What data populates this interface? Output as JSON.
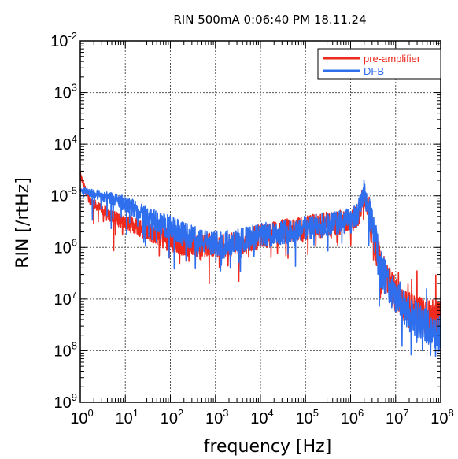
{
  "chart_data": {
    "type": "line",
    "title": "RIN 500mA 0:06:40 PM 18.11.24",
    "xlabel": "frequency [Hz]",
    "ylabel": "RIN [/rtHz]",
    "x_scale": "log",
    "y_scale": "log",
    "xlim": [
      1,
      100000000
    ],
    "ylim": [
      1e-09,
      0.01
    ],
    "x_ticks": [
      {
        "base": "10",
        "exp": "0"
      },
      {
        "base": "10",
        "exp": "1"
      },
      {
        "base": "10",
        "exp": "2"
      },
      {
        "base": "10",
        "exp": "3"
      },
      {
        "base": "10",
        "exp": "4"
      },
      {
        "base": "10",
        "exp": "5"
      },
      {
        "base": "10",
        "exp": "6"
      },
      {
        "base": "10",
        "exp": "7"
      },
      {
        "base": "10",
        "exp": "8"
      }
    ],
    "y_ticks": [
      {
        "base": "10",
        "exp": "-2"
      },
      {
        "base": "10",
        "exp": "3"
      },
      {
        "base": "10",
        "exp": "4"
      },
      {
        "base": "10",
        "exp": "-5"
      },
      {
        "base": "10",
        "exp": "6"
      },
      {
        "base": "10",
        "exp": "7"
      },
      {
        "base": "10",
        "exp": "8"
      },
      {
        "base": "10",
        "exp": "9"
      }
    ],
    "grid": true,
    "legend_position": "top-right",
    "series": [
      {
        "name": "pre-amplifier",
        "color": "#ee2a1e",
        "x": [
          1,
          1.5,
          2,
          3,
          5,
          10,
          20,
          50,
          100,
          200,
          500,
          1000,
          3000,
          10000,
          30000,
          100000,
          300000,
          1000000,
          1500000,
          2000000,
          2500000,
          3500000,
          5000000,
          10000000,
          20000000,
          50000000,
          100000000
        ],
        "y": [
          2.5e-05,
          9e-06,
          7e-06,
          5.5e-06,
          4e-06,
          3e-06,
          2.5e-06,
          1.8e-06,
          1.4e-06,
          1.2e-06,
          1.1e-06,
          1.1e-06,
          1.2e-06,
          1.6e-06,
          2e-06,
          2.4e-06,
          2.8e-06,
          3.2e-06,
          4.5e-06,
          1.1e-05,
          5e-06,
          1.2e-06,
          3.5e-07,
          1.2e-07,
          6e-08,
          4.5e-08,
          4e-08
        ]
      },
      {
        "name": "DFB",
        "color": "#2f6fee",
        "x": [
          1,
          1.5,
          2,
          3,
          5,
          10,
          20,
          50,
          100,
          200,
          500,
          1000,
          3000,
          10000,
          30000,
          100000,
          300000,
          1000000,
          1500000,
          2000000,
          2500000,
          3500000,
          5000000,
          10000000,
          20000000,
          50000000,
          100000000
        ],
        "y": [
          1.3e-05,
          1.2e-05,
          1.1e-05,
          1e-05,
          9e-06,
          7e-06,
          5e-06,
          3.2e-06,
          2.4e-06,
          1.8e-06,
          1.3e-06,
          1.2e-06,
          1.3e-06,
          1.7e-06,
          2e-06,
          2.4e-06,
          2.8e-06,
          3.3e-06,
          5e-06,
          1.2e-05,
          5.5e-06,
          1.5e-06,
          3.5e-07,
          1e-07,
          5e-08,
          3e-08,
          2e-08
        ]
      }
    ]
  }
}
